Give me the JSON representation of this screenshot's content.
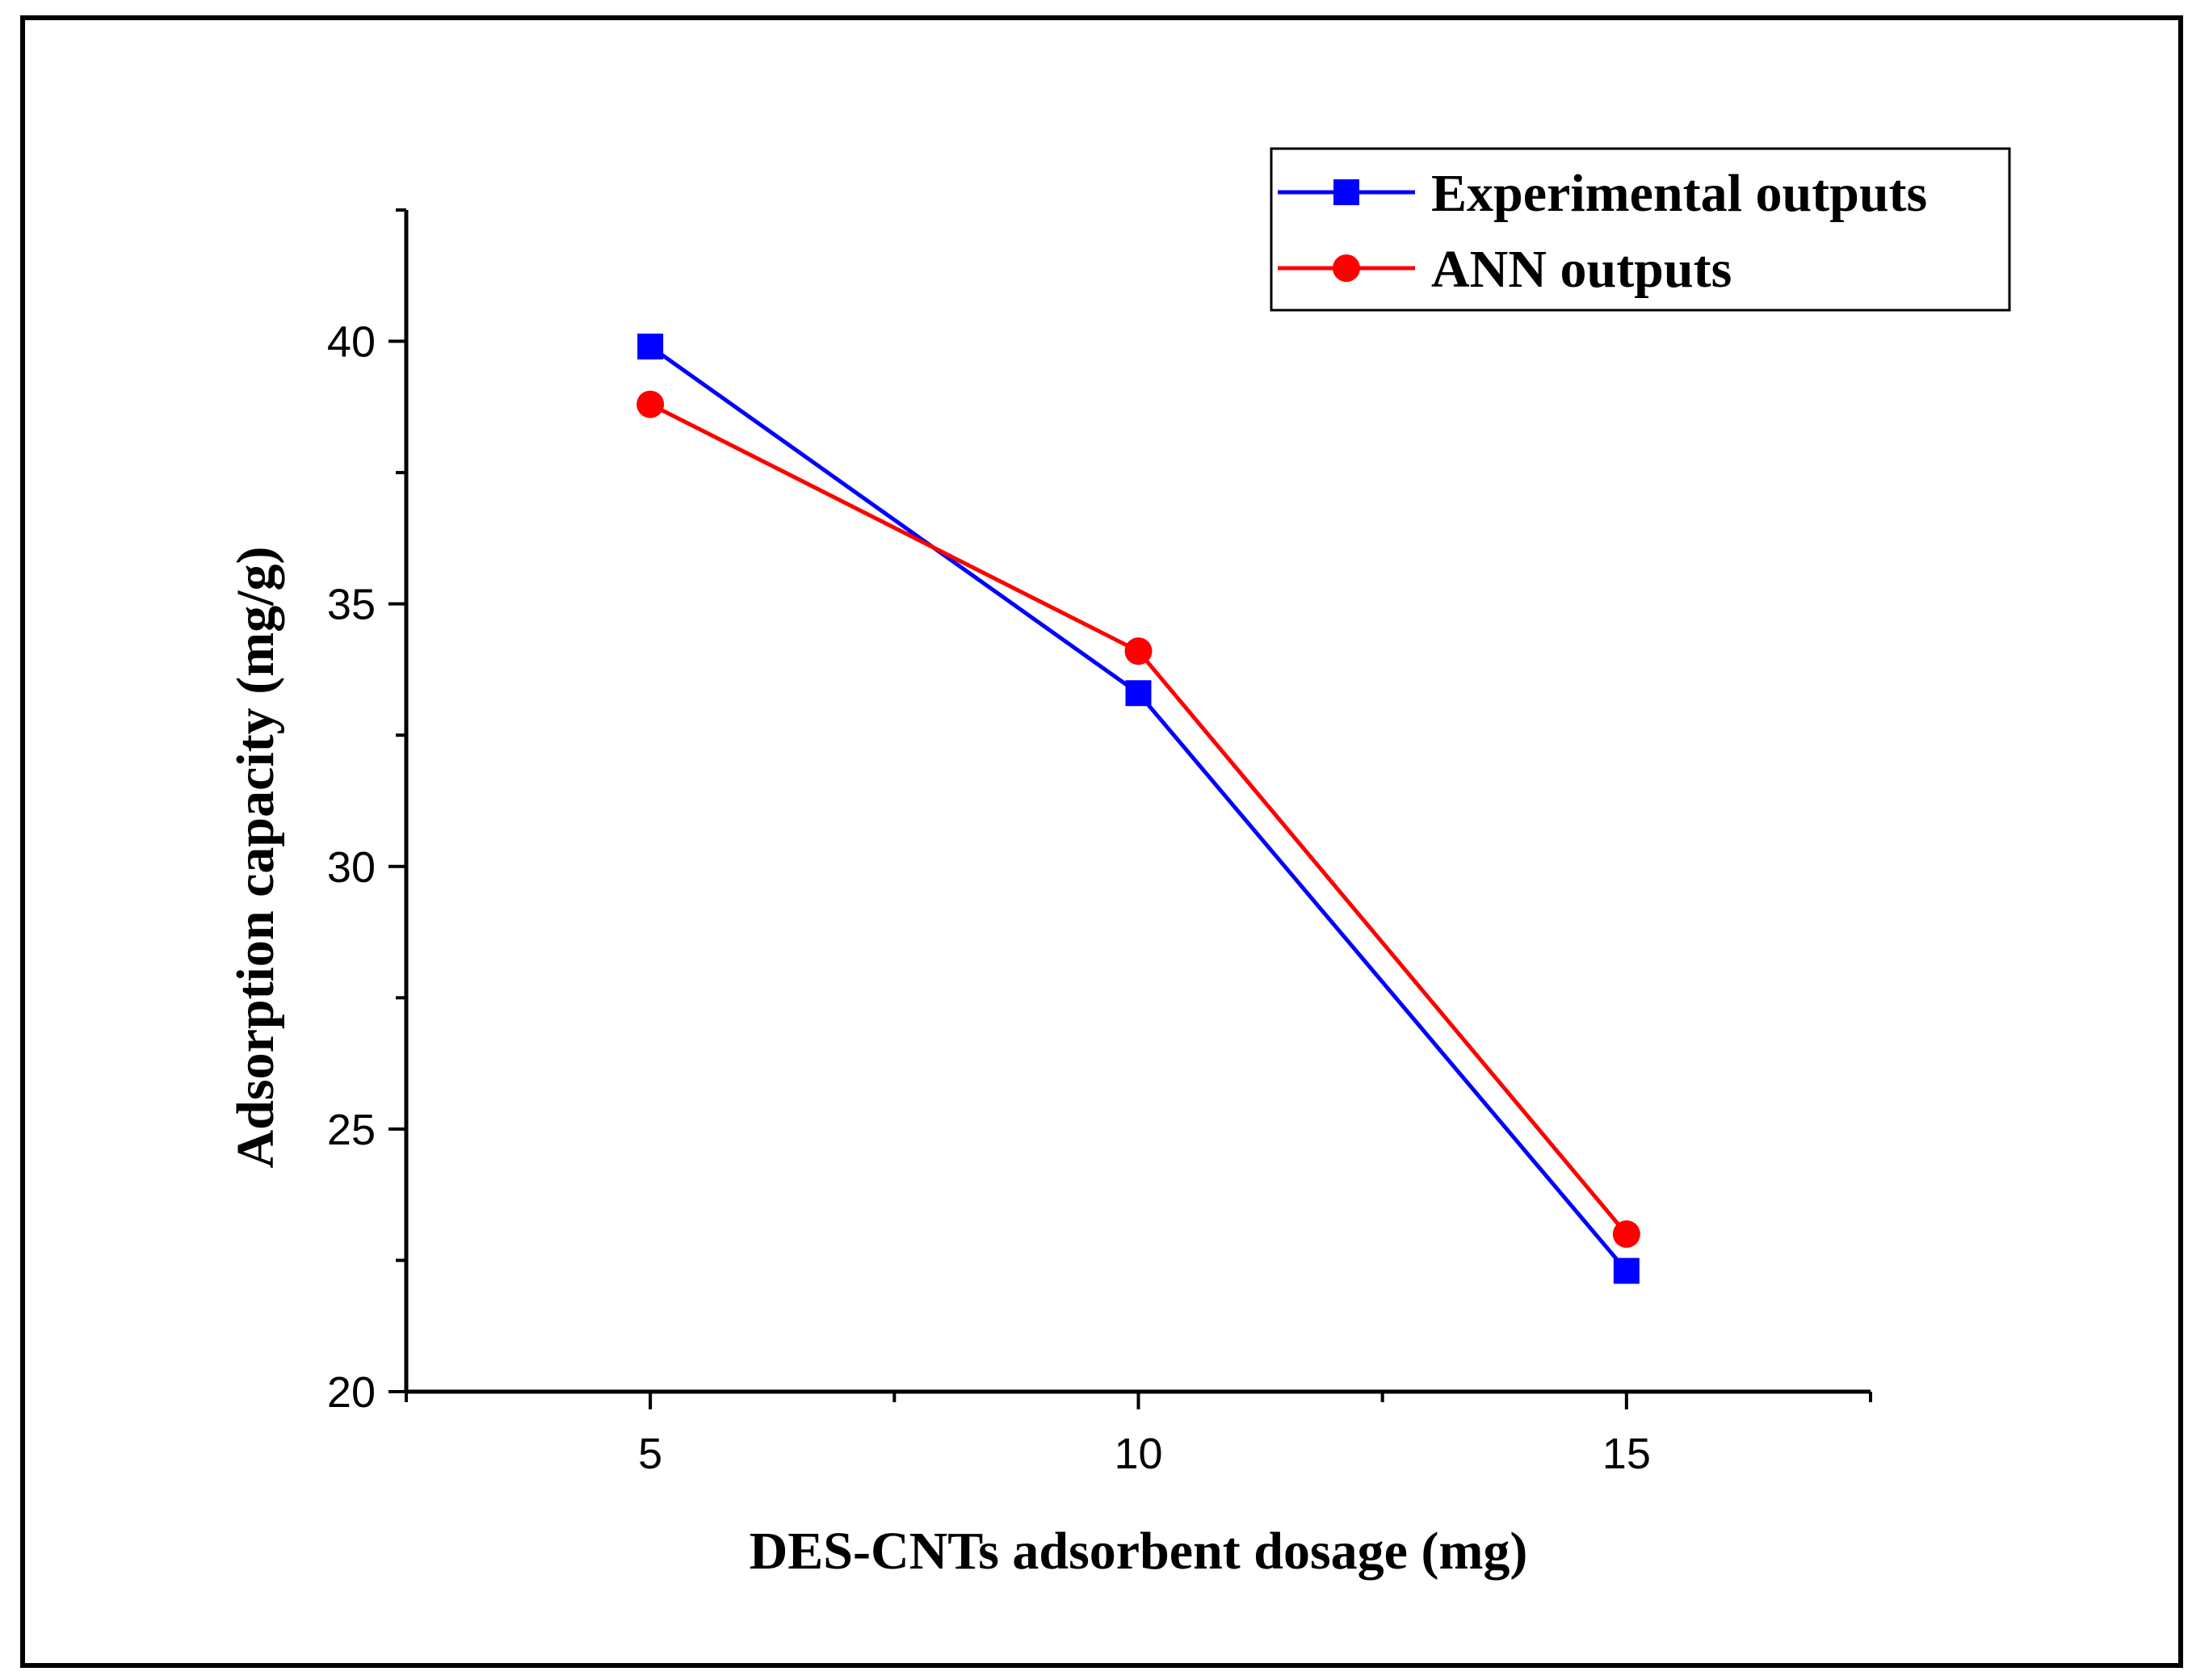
{
  "chart_data": {
    "type": "line",
    "title": "",
    "xlabel": "DES-CNTs adsorbent dosage (mg)",
    "ylabel": "Adsorption capacity (mg/g)",
    "xlim": [
      2.5,
      17.5
    ],
    "ylim": [
      20,
      42.5
    ],
    "xticks": [
      5,
      10,
      15
    ],
    "yticks": [
      20,
      25,
      30,
      35,
      40
    ],
    "x": [
      5,
      10,
      15
    ],
    "grid": false,
    "legend_position": "top-right",
    "series": [
      {
        "name": "Experimental outputs",
        "values": [
          39.9,
          33.3,
          22.3
        ],
        "color": "#0000ff",
        "marker": "square"
      },
      {
        "name": "ANN outputs",
        "values": [
          38.8,
          34.1,
          23.0
        ],
        "color": "#ff0000",
        "marker": "circle"
      }
    ]
  }
}
